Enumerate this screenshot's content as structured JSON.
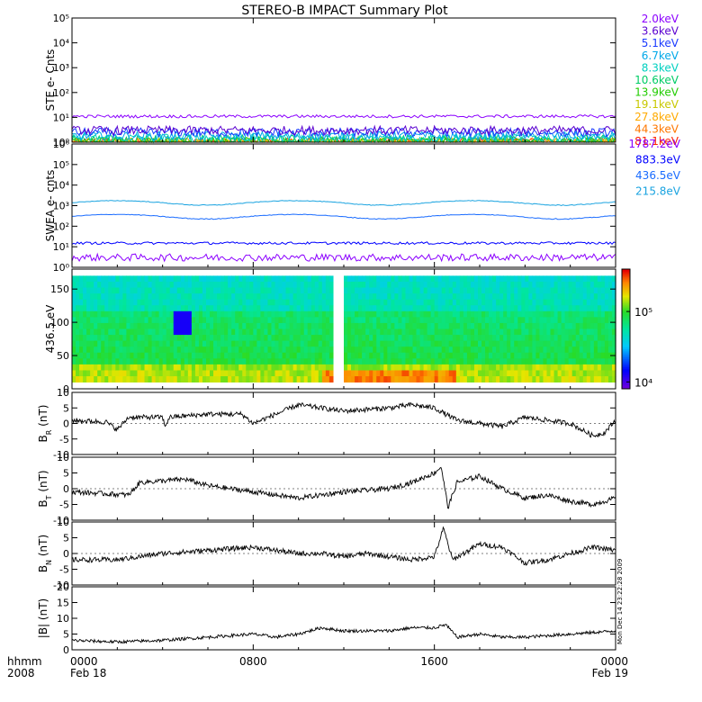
{
  "title": "STEREO-B IMPACT Summary Plot",
  "colors": {
    "ste": [
      "#8b00ff",
      "#5a00d0",
      "#1a3aff",
      "#00a8e8",
      "#00d0c0",
      "#00cc66",
      "#22cc00",
      "#c8c800",
      "#ffaa00",
      "#ff7700",
      "#ff2200"
    ],
    "swea": [
      "#8b00ff",
      "#0000ff",
      "#1a6cff",
      "#19a3e0",
      "#19d9c0"
    ]
  },
  "footer": {
    "hhmm_label": "hhmm",
    "year_label": "2008",
    "stamp": "Mon Dec 14 23:22:28 2009"
  },
  "chart_data": [
    {
      "type": "line",
      "name": "ste",
      "ylabel": "STE e- Cnts",
      "yscale": "log",
      "ylim": [
        1,
        100000
      ],
      "y_ticks": [
        1,
        10,
        100,
        1000,
        10000,
        100000
      ],
      "y_tick_labels": [
        "10⁰",
        "10¹",
        "10²",
        "10³",
        "10⁴",
        "10⁵"
      ],
      "series": [
        {
          "name": "2.0keV",
          "level": 11
        },
        {
          "name": "3.6keV",
          "level": 3
        },
        {
          "name": "5.1keV",
          "level": 2.5
        },
        {
          "name": "6.7keV",
          "level": 1.8
        },
        {
          "name": "8.3keV",
          "level": 1.5
        },
        {
          "name": "10.6keV",
          "level": 1.3
        },
        {
          "name": "13.9keV",
          "level": 1.1
        },
        {
          "name": "19.1keV",
          "level": 1
        },
        {
          "name": "27.8keV",
          "level": 1
        },
        {
          "name": "44.3keV",
          "level": 1
        },
        {
          "name": "81.1keV",
          "level": 1
        }
      ]
    },
    {
      "type": "line",
      "name": "swea",
      "ylabel": "SWEA e- cnts",
      "yscale": "log",
      "ylim": [
        1,
        1000000
      ],
      "y_ticks": [
        1,
        10,
        100,
        1000,
        10000,
        100000,
        1000000
      ],
      "y_tick_labels": [
        "10⁰",
        "10¹",
        "10²",
        "10³",
        "10⁴",
        "10⁵",
        "10⁶"
      ],
      "series": [
        {
          "name": "1787.2eV",
          "level": 3
        },
        {
          "name": "883.3eV",
          "level": 15
        },
        {
          "name": "436.5eV",
          "level": 300
        },
        {
          "name": "215.8eV",
          "level": 1400
        }
      ]
    },
    {
      "type": "heatmap",
      "name": "pitch",
      "ylabel": "436.5 eV",
      "ylim": [
        0,
        180
      ],
      "y_ticks": [
        0,
        50,
        100,
        150
      ],
      "y_tick_labels": [
        "0",
        "50",
        "100",
        "150"
      ],
      "colorbar": {
        "scale": "log",
        "range": [
          8000,
          400000
        ],
        "ticks": [
          10000,
          100000
        ],
        "tick_labels": [
          "10⁴",
          "10⁵"
        ]
      },
      "gap_hours": [
        11.6,
        12.0
      ]
    },
    {
      "type": "line",
      "name": "br",
      "ylabel": "B_R (nT)",
      "ylabel_main": "B",
      "ylabel_sub": "R",
      "ylabel_unit": "(nT)",
      "ylim": [
        -10,
        10
      ],
      "y_ticks": [
        -10,
        -5,
        0,
        5,
        10
      ],
      "y_tick_labels": [
        "-10",
        "-5",
        "0",
        "5",
        "10"
      ],
      "knots": [
        [
          0,
          1
        ],
        [
          1.5,
          0.5
        ],
        [
          2,
          -2
        ],
        [
          2.5,
          2
        ],
        [
          4,
          2
        ],
        [
          4.1,
          -1
        ],
        [
          4.3,
          2
        ],
        [
          6,
          3
        ],
        [
          7.5,
          3
        ],
        [
          8,
          0
        ],
        [
          9,
          3
        ],
        [
          10,
          6
        ],
        [
          11,
          5
        ],
        [
          12,
          4
        ],
        [
          14,
          5
        ],
        [
          15,
          6
        ],
        [
          16,
          5
        ],
        [
          17,
          1
        ],
        [
          18,
          0
        ],
        [
          19,
          -1
        ],
        [
          20,
          2
        ],
        [
          21,
          1
        ],
        [
          22,
          0
        ],
        [
          23,
          -4
        ],
        [
          23.5,
          -3
        ],
        [
          24,
          1
        ]
      ]
    },
    {
      "type": "line",
      "name": "bt",
      "ylabel": "B_T (nT)",
      "ylabel_main": "B",
      "ylabel_sub": "T",
      "ylabel_unit": "(nT)",
      "ylim": [
        -10,
        10
      ],
      "y_ticks": [
        -10,
        -5,
        0,
        5,
        10
      ],
      "y_tick_labels": [
        "-10",
        "-5",
        "0",
        "5",
        "10"
      ],
      "knots": [
        [
          0,
          -1
        ],
        [
          2.5,
          -2
        ],
        [
          3,
          2
        ],
        [
          5,
          3
        ],
        [
          6,
          1
        ],
        [
          7,
          0
        ],
        [
          9,
          -2
        ],
        [
          10,
          -3
        ],
        [
          12,
          -1
        ],
        [
          14,
          0
        ],
        [
          15,
          2
        ],
        [
          16,
          5
        ],
        [
          16.3,
          7
        ],
        [
          16.6,
          -6
        ],
        [
          17,
          2
        ],
        [
          18,
          4
        ],
        [
          19,
          0
        ],
        [
          20,
          -3
        ],
        [
          21,
          -2
        ],
        [
          22,
          -4
        ],
        [
          23,
          -5
        ],
        [
          24,
          -3
        ]
      ]
    },
    {
      "type": "line",
      "name": "bn",
      "ylabel": "B_N (nT)",
      "ylabel_main": "B",
      "ylabel_sub": "N",
      "ylabel_unit": "(nT)",
      "ylim": [
        -10,
        10
      ],
      "y_ticks": [
        -10,
        -5,
        0,
        5,
        10
      ],
      "y_tick_labels": [
        "-10",
        "-5",
        "0",
        "5",
        "10"
      ],
      "knots": [
        [
          0,
          -2
        ],
        [
          2,
          -2
        ],
        [
          4,
          0
        ],
        [
          6,
          1
        ],
        [
          8,
          2
        ],
        [
          9,
          1
        ],
        [
          10,
          0
        ],
        [
          11,
          0
        ],
        [
          12,
          -1
        ],
        [
          13,
          0
        ],
        [
          14,
          -1
        ],
        [
          15,
          -2
        ],
        [
          16,
          -1
        ],
        [
          16.4,
          8
        ],
        [
          16.8,
          -2
        ],
        [
          18,
          3
        ],
        [
          19,
          2
        ],
        [
          20,
          -3
        ],
        [
          21,
          -2
        ],
        [
          22,
          0
        ],
        [
          23,
          2
        ],
        [
          24,
          1
        ]
      ]
    },
    {
      "type": "line",
      "name": "bmag",
      "ylabel": "|B| (nT)",
      "ylim": [
        0,
        20
      ],
      "y_ticks": [
        0,
        5,
        10,
        15,
        20
      ],
      "y_tick_labels": [
        "0",
        "5",
        "10",
        "15",
        "20"
      ],
      "knots": [
        [
          0,
          3
        ],
        [
          2,
          2.5
        ],
        [
          4,
          3
        ],
        [
          6,
          4
        ],
        [
          8,
          5
        ],
        [
          9,
          4
        ],
        [
          10,
          5
        ],
        [
          11,
          7
        ],
        [
          12,
          6
        ],
        [
          14,
          6
        ],
        [
          15,
          7
        ],
        [
          16,
          7
        ],
        [
          16.5,
          8
        ],
        [
          17,
          4
        ],
        [
          18,
          5
        ],
        [
          19,
          4
        ],
        [
          20,
          4
        ],
        [
          22,
          5
        ],
        [
          24,
          6
        ]
      ]
    }
  ],
  "x_axis": {
    "range_hours": [
      0,
      24
    ],
    "ticks": [
      {
        "hour": 0,
        "time": "0000",
        "date": "Feb 18"
      },
      {
        "hour": 8,
        "time": "0800",
        "date": ""
      },
      {
        "hour": 16,
        "time": "1600",
        "date": ""
      },
      {
        "hour": 24,
        "time": "0000",
        "date": "Feb 19"
      }
    ]
  }
}
